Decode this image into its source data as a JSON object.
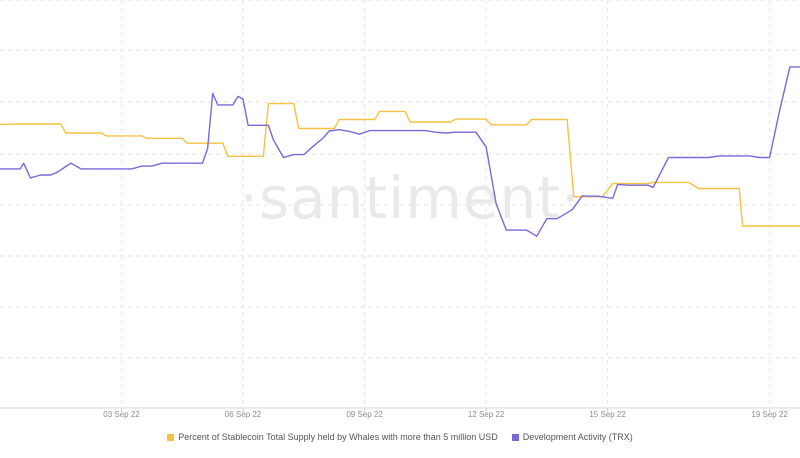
{
  "watermark": "·santiment·",
  "colors": {
    "stablecoin": "#f5c242",
    "dev_activity": "#7b68d9",
    "grid": "#e6e6e6"
  },
  "legend": {
    "stablecoin_label": "Percent of Stablecoin Total Supply held by Whales with more than 5 million USD",
    "dev_label": "Development Activity (TRX)"
  },
  "chart_data": {
    "type": "line",
    "title": "",
    "xlabel": "",
    "ylabel": "",
    "x_ticks": [
      "03 Sep 22",
      "06 Sep 22",
      "09 Sep 22",
      "12 Sep 22",
      "15 Sep 22",
      "19 Sep 22"
    ],
    "x_range": [
      "31 Aug 22",
      "19 Sep 22 18:00"
    ],
    "grid": true,
    "legend_position": "bottom",
    "series": [
      {
        "name": "Percent of Stablecoin Total Supply held by Whales with more than 5 million USD",
        "points": [
          [
            "31 Aug 22 00:00",
            69.5
          ],
          [
            "31 Aug 22 12:00",
            69.6
          ],
          [
            "01 Sep 22 12:00",
            69.6
          ],
          [
            "01 Sep 22 15:00",
            67.4
          ],
          [
            "02 Sep 22 12:00",
            67.4
          ],
          [
            "02 Sep 22 15:00",
            66.7
          ],
          [
            "03 Sep 22 12:00",
            66.7
          ],
          [
            "03 Sep 22 15:00",
            66.1
          ],
          [
            "04 Sep 22 12:00",
            66.1
          ],
          [
            "04 Sep 22 15:00",
            64.9
          ],
          [
            "05 Sep 22 12:00",
            64.9
          ],
          [
            "05 Sep 22 15:00",
            61.7
          ],
          [
            "06 Sep 22 12:00",
            61.7
          ],
          [
            "06 Sep 22 15:00",
            74.6
          ],
          [
            "07 Sep 22 06:00",
            74.6
          ],
          [
            "07 Sep 22 09:00",
            68.5
          ],
          [
            "08 Sep 22 06:00",
            68.5
          ],
          [
            "08 Sep 22 09:00",
            70.7
          ],
          [
            "09 Sep 22 06:00",
            70.7
          ],
          [
            "09 Sep 22 09:00",
            72.7
          ],
          [
            "10 Sep 22 00:00",
            72.7
          ],
          [
            "10 Sep 22 03:00",
            70.1
          ],
          [
            "11 Sep 22 03:00",
            70.1
          ],
          [
            "11 Sep 22 06:00",
            70.8
          ],
          [
            "12 Sep 22 00:00",
            70.8
          ],
          [
            "12 Sep 22 03:00",
            69.4
          ],
          [
            "13 Sep 22 00:00",
            69.4
          ],
          [
            "13 Sep 22 03:00",
            70.7
          ],
          [
            "14 Sep 22 00:00",
            70.7
          ],
          [
            "14 Sep 22 04:00",
            51.8
          ],
          [
            "14 Sep 22 21:00",
            51.8
          ],
          [
            "15 Sep 22 03:00",
            55.0
          ],
          [
            "16 Sep 22 00:00",
            55.0
          ],
          [
            "16 Sep 22 03:00",
            55.3
          ],
          [
            "17 Sep 22 00:00",
            55.3
          ],
          [
            "17 Sep 22 06:00",
            53.8
          ],
          [
            "18 Sep 22 06:00",
            53.8
          ],
          [
            "18 Sep 22 08:00",
            44.6
          ],
          [
            "19 Sep 22 18:00",
            44.6
          ]
        ]
      },
      {
        "name": "Development Activity (TRX)",
        "points": [
          [
            "31 Aug 22 00:00",
            58.6
          ],
          [
            "31 Aug 22 12:00",
            58.6
          ],
          [
            "31 Aug 22 14:00",
            60.0
          ],
          [
            "31 Aug 22 18:00",
            56.4
          ],
          [
            "01 Sep 22 00:00",
            57.1
          ],
          [
            "01 Sep 22 06:00",
            57.1
          ],
          [
            "01 Sep 22 10:00",
            57.8
          ],
          [
            "01 Sep 22 15:00",
            59.2
          ],
          [
            "01 Sep 22 18:00",
            60.0
          ],
          [
            "02 Sep 22 00:00",
            58.6
          ],
          [
            "03 Sep 22 06:00",
            58.6
          ],
          [
            "03 Sep 22 12:00",
            59.3
          ],
          [
            "03 Sep 22 18:00",
            59.3
          ],
          [
            "04 Sep 22 00:00",
            60.0
          ],
          [
            "05 Sep 22 00:00",
            60.0
          ],
          [
            "05 Sep 22 03:00",
            63.6
          ],
          [
            "05 Sep 22 06:00",
            77.1
          ],
          [
            "05 Sep 22 09:00",
            74.3
          ],
          [
            "05 Sep 22 18:00",
            74.3
          ],
          [
            "05 Sep 22 21:00",
            76.4
          ],
          [
            "06 Sep 22 00:00",
            75.7
          ],
          [
            "06 Sep 22 03:00",
            69.3
          ],
          [
            "06 Sep 22 09:00",
            69.3
          ],
          [
            "06 Sep 22 15:00",
            69.3
          ],
          [
            "06 Sep 22 18:00",
            65.7
          ],
          [
            "07 Sep 22 00:00",
            61.4
          ],
          [
            "07 Sep 22 06:00",
            62.1
          ],
          [
            "07 Sep 22 12:00",
            62.1
          ],
          [
            "07 Sep 22 18:00",
            64.3
          ],
          [
            "08 Sep 22 00:00",
            66.4
          ],
          [
            "08 Sep 22 03:00",
            67.9
          ],
          [
            "08 Sep 22 09:00",
            68.2
          ],
          [
            "08 Sep 22 15:00",
            67.8
          ],
          [
            "08 Sep 22 21:00",
            67.1
          ],
          [
            "09 Sep 22 03:00",
            68.0
          ],
          [
            "10 Sep 22 12:00",
            68.0
          ],
          [
            "10 Sep 22 18:00",
            67.6
          ],
          [
            "11 Sep 22 00:00",
            67.4
          ],
          [
            "11 Sep 22 06:00",
            67.6
          ],
          [
            "11 Sep 22 18:00",
            67.6
          ],
          [
            "12 Sep 22 00:00",
            64.0
          ],
          [
            "12 Sep 22 06:00",
            50.0
          ],
          [
            "12 Sep 22 12:00",
            43.6
          ],
          [
            "13 Sep 22 00:00",
            43.6
          ],
          [
            "13 Sep 22 06:00",
            42.1
          ],
          [
            "13 Sep 22 12:00",
            46.4
          ],
          [
            "13 Sep 22 18:00",
            46.4
          ],
          [
            "13 Sep 22 21:00",
            47.1
          ],
          [
            "14 Sep 22 03:00",
            48.6
          ],
          [
            "14 Sep 22 09:00",
            52.0
          ],
          [
            "14 Sep 22 12:00",
            51.9
          ],
          [
            "14 Sep 22 18:00",
            51.9
          ],
          [
            "15 Sep 22 03:00",
            51.4
          ],
          [
            "15 Sep 22 06:00",
            54.8
          ],
          [
            "15 Sep 22 12:00",
            54.6
          ],
          [
            "16 Sep 22 00:00",
            54.6
          ],
          [
            "16 Sep 22 03:00",
            54.1
          ],
          [
            "16 Sep 22 12:00",
            61.4
          ],
          [
            "17 Sep 22 12:00",
            61.4
          ],
          [
            "17 Sep 22 18:00",
            61.8
          ],
          [
            "18 Sep 22 12:00",
            61.8
          ],
          [
            "18 Sep 22 18:00",
            61.4
          ],
          [
            "19 Sep 22 00:00",
            61.4
          ],
          [
            "19 Sep 22 06:00",
            73.0
          ],
          [
            "19 Sep 22 12:00",
            83.6
          ],
          [
            "19 Sep 22 18:00",
            83.6
          ]
        ]
      }
    ]
  }
}
